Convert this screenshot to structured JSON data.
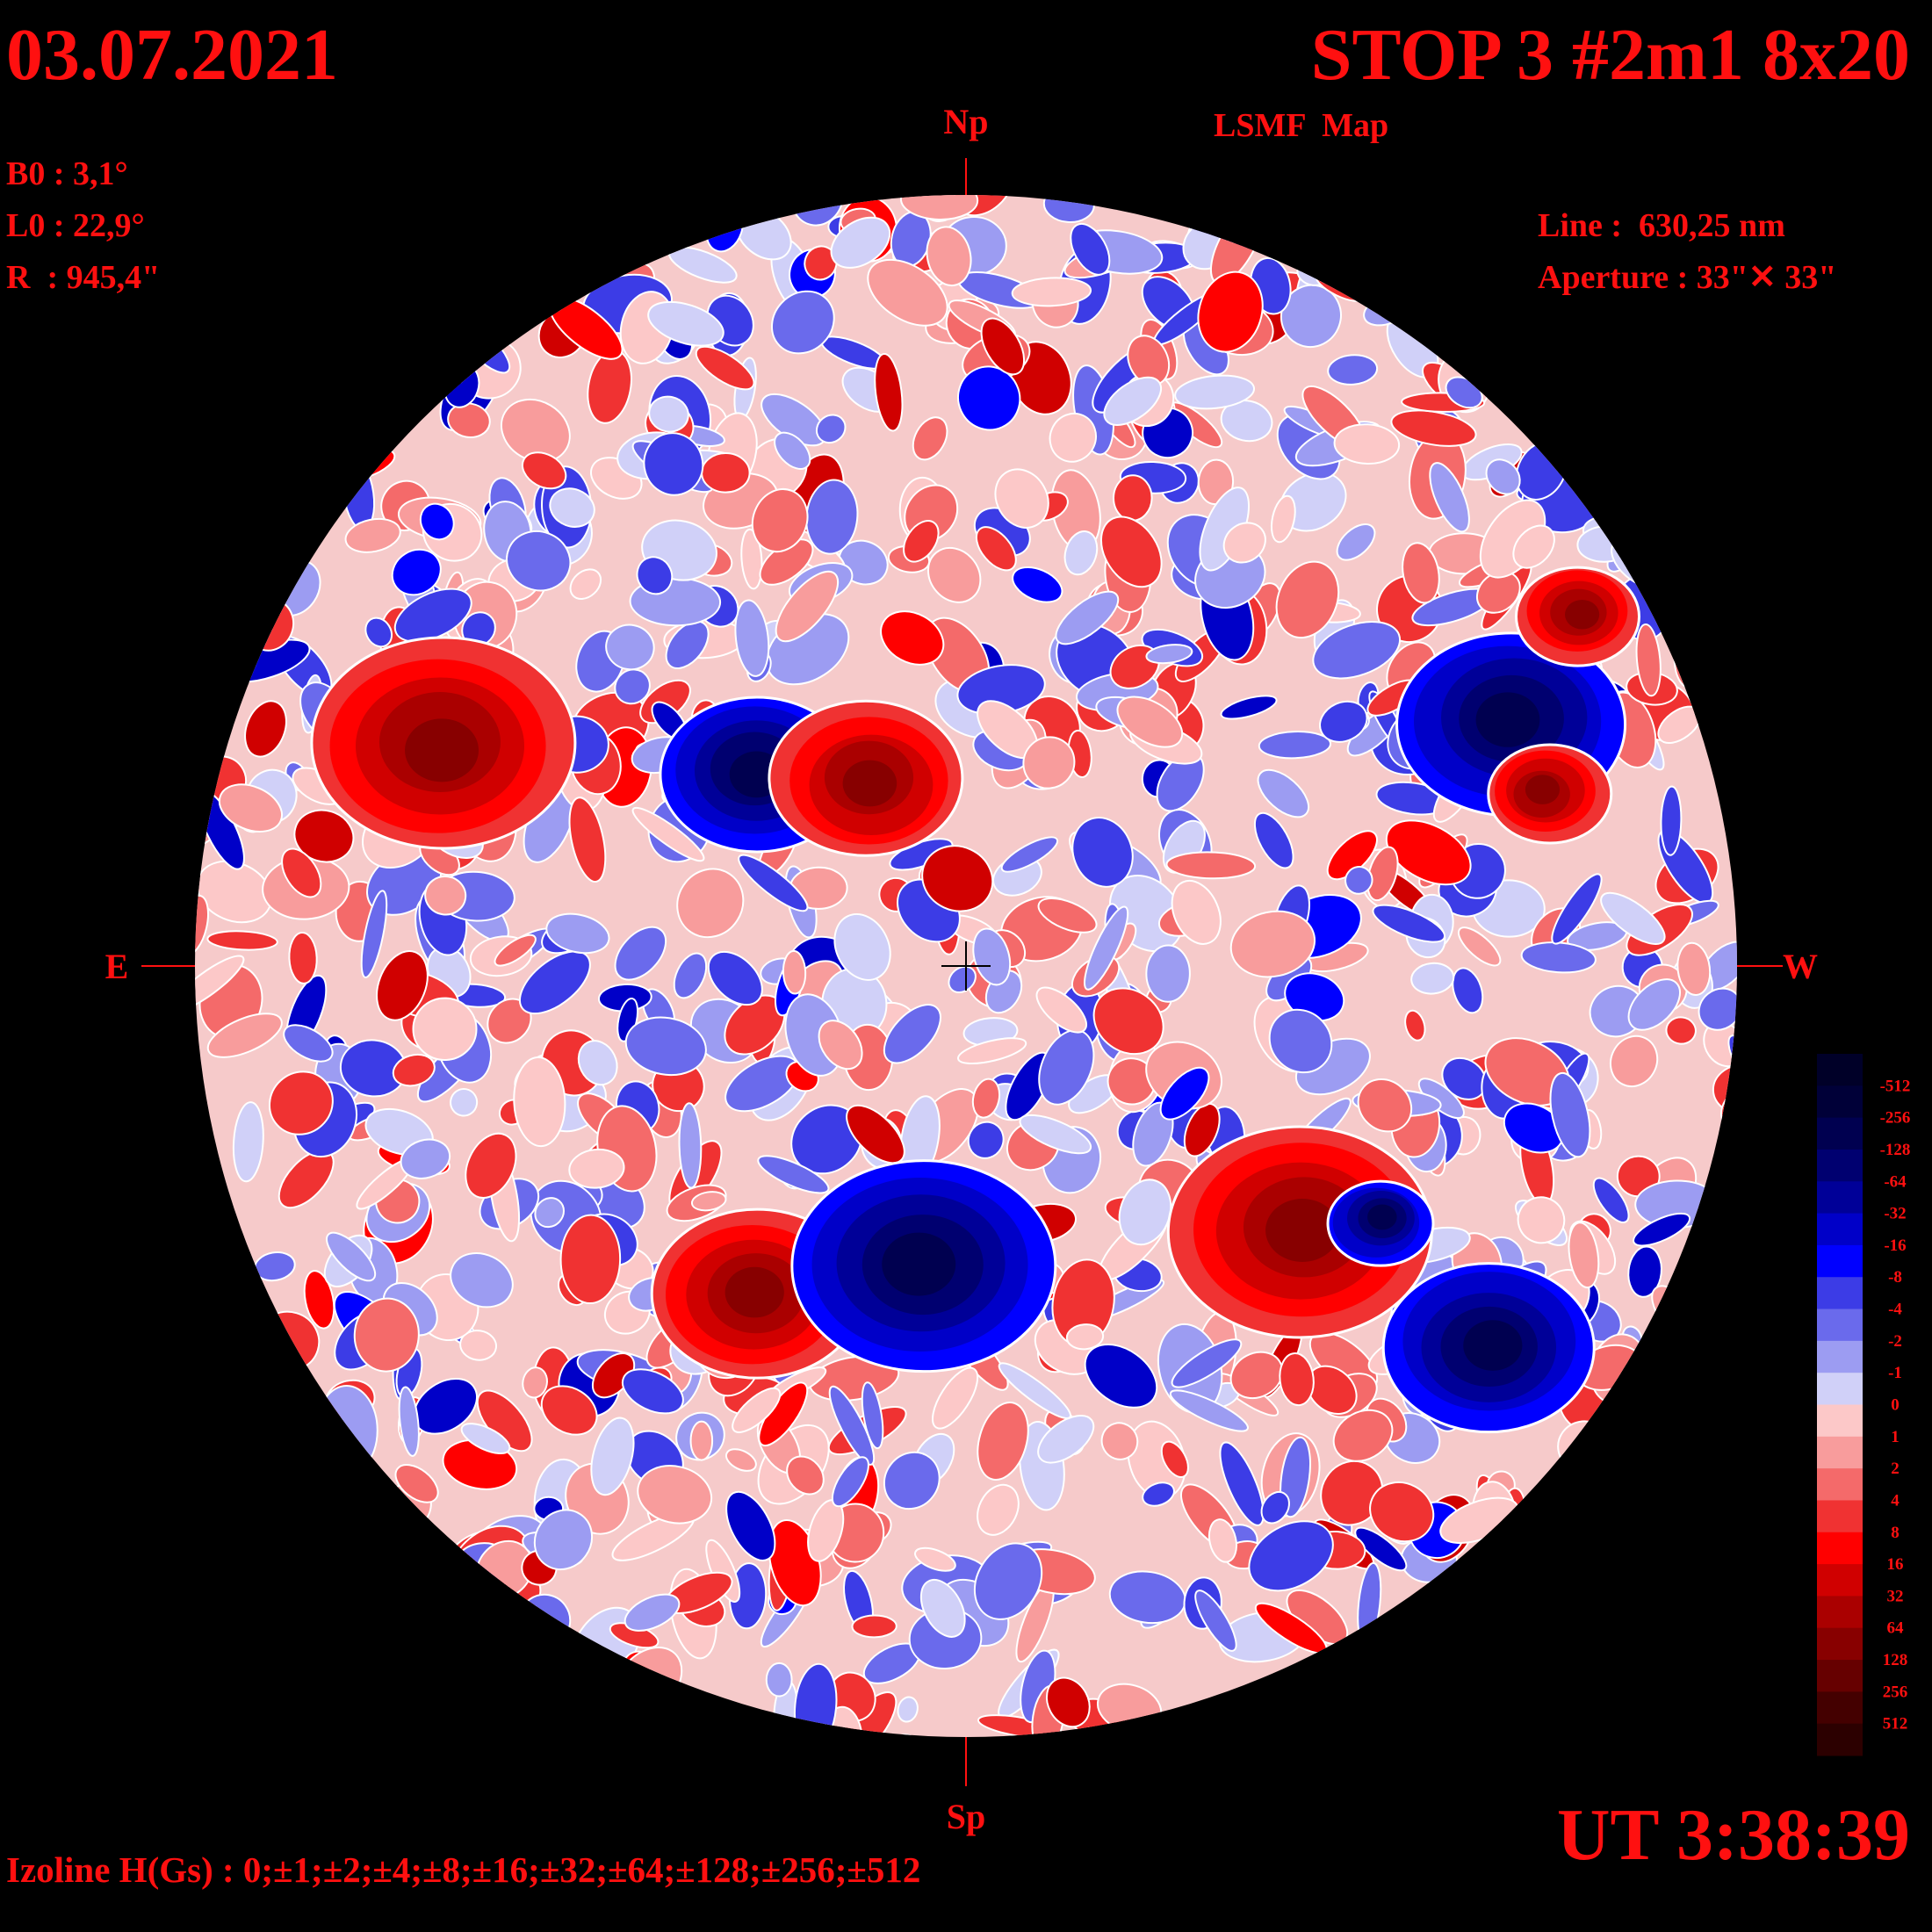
{
  "header": {
    "date": "03.07.2021",
    "title": "STOP 3 #2m1 8x20",
    "subtitle": "LSMF  Map"
  },
  "params": {
    "b0": "B0 : 3,1°",
    "l0": "L0 : 22,9°",
    "r": "R  : 945,4\""
  },
  "instrument": {
    "line": "Line :  630,25 nm",
    "aperture": "Aperture : 33\"✕ 33\""
  },
  "directions": {
    "north": "Np",
    "south": "Sp",
    "east": "E",
    "west": "W"
  },
  "colorbar": {
    "labels": [
      "-512",
      "-256",
      "-128",
      "-64",
      "-32",
      "-16",
      "-8",
      "-4",
      "-2",
      "-1",
      "0",
      "1",
      "2",
      "4",
      "8",
      "16",
      "32",
      "64",
      "128",
      "256",
      "512"
    ]
  },
  "footer": {
    "time": "UT 3:38:39",
    "izoline": "Izoline H(Gs) : 0;±1;±2;±4;±8;±16;±32;±64;±128;±256;±512"
  }
}
